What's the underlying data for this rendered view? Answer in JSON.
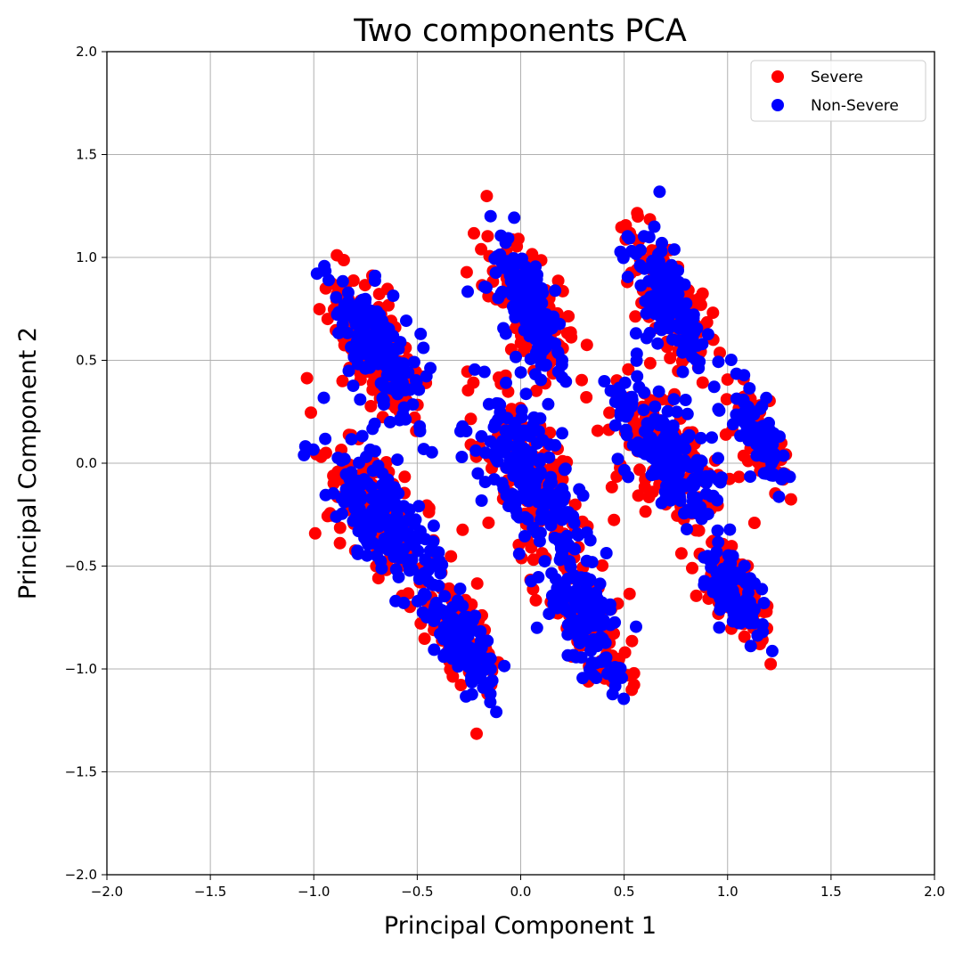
{
  "chart_data": {
    "type": "scatter",
    "title": "Two components PCA",
    "xlabel": "Principal Component 1",
    "ylabel": "Principal Component 2",
    "xlim": [
      -2.0,
      2.0
    ],
    "ylim": [
      -2.0,
      2.0
    ],
    "xticks": [
      "−2.0",
      "−1.5",
      "−1.0",
      "−0.5",
      "0.0",
      "0.5",
      "1.0",
      "1.5",
      "2.0"
    ],
    "yticks": [
      "−2.0",
      "−1.5",
      "−1.0",
      "−0.5",
      "0.0",
      "0.5",
      "1.0",
      "1.5",
      "2.0"
    ],
    "grid": true,
    "legend_position": "top-right",
    "series": [
      {
        "name": "Severe",
        "color": "#ff0000",
        "clusters": [
          {
            "x": -0.7,
            "y": 0.55,
            "sx": 0.14,
            "sy": 0.22,
            "n": 150
          },
          {
            "x": -0.68,
            "y": -0.25,
            "sx": 0.16,
            "sy": 0.22,
            "n": 150
          },
          {
            "x": -0.3,
            "y": -0.85,
            "sx": 0.11,
            "sy": 0.18,
            "n": 100
          },
          {
            "x": 0.05,
            "y": 0.75,
            "sx": 0.12,
            "sy": 0.22,
            "n": 120
          },
          {
            "x": 0.05,
            "y": -0.05,
            "sx": 0.18,
            "sy": 0.28,
            "n": 150
          },
          {
            "x": 0.3,
            "y": -0.75,
            "sx": 0.13,
            "sy": 0.2,
            "n": 110
          },
          {
            "x": 0.7,
            "y": 0.8,
            "sx": 0.13,
            "sy": 0.2,
            "n": 110
          },
          {
            "x": 0.7,
            "y": 0.05,
            "sx": 0.18,
            "sy": 0.22,
            "n": 140
          },
          {
            "x": 1.05,
            "y": -0.65,
            "sx": 0.1,
            "sy": 0.14,
            "n": 90
          },
          {
            "x": 1.15,
            "y": 0.15,
            "sx": 0.08,
            "sy": 0.15,
            "n": 70
          }
        ]
      },
      {
        "name": "Non-Severe",
        "color": "#0000ff",
        "clusters": [
          {
            "x": -0.7,
            "y": 0.55,
            "sx": 0.13,
            "sy": 0.21,
            "n": 170
          },
          {
            "x": -0.68,
            "y": -0.25,
            "sx": 0.15,
            "sy": 0.21,
            "n": 170
          },
          {
            "x": -0.3,
            "y": -0.85,
            "sx": 0.1,
            "sy": 0.17,
            "n": 120
          },
          {
            "x": 0.05,
            "y": 0.75,
            "sx": 0.11,
            "sy": 0.21,
            "n": 140
          },
          {
            "x": 0.05,
            "y": -0.05,
            "sx": 0.17,
            "sy": 0.27,
            "n": 180
          },
          {
            "x": 0.3,
            "y": -0.75,
            "sx": 0.12,
            "sy": 0.19,
            "n": 130
          },
          {
            "x": 0.7,
            "y": 0.8,
            "sx": 0.12,
            "sy": 0.19,
            "n": 130
          },
          {
            "x": 0.7,
            "y": 0.05,
            "sx": 0.17,
            "sy": 0.21,
            "n": 170
          },
          {
            "x": 1.05,
            "y": -0.65,
            "sx": 0.09,
            "sy": 0.13,
            "n": 100
          },
          {
            "x": 1.15,
            "y": 0.15,
            "sx": 0.07,
            "sy": 0.14,
            "n": 80
          }
        ]
      }
    ]
  }
}
